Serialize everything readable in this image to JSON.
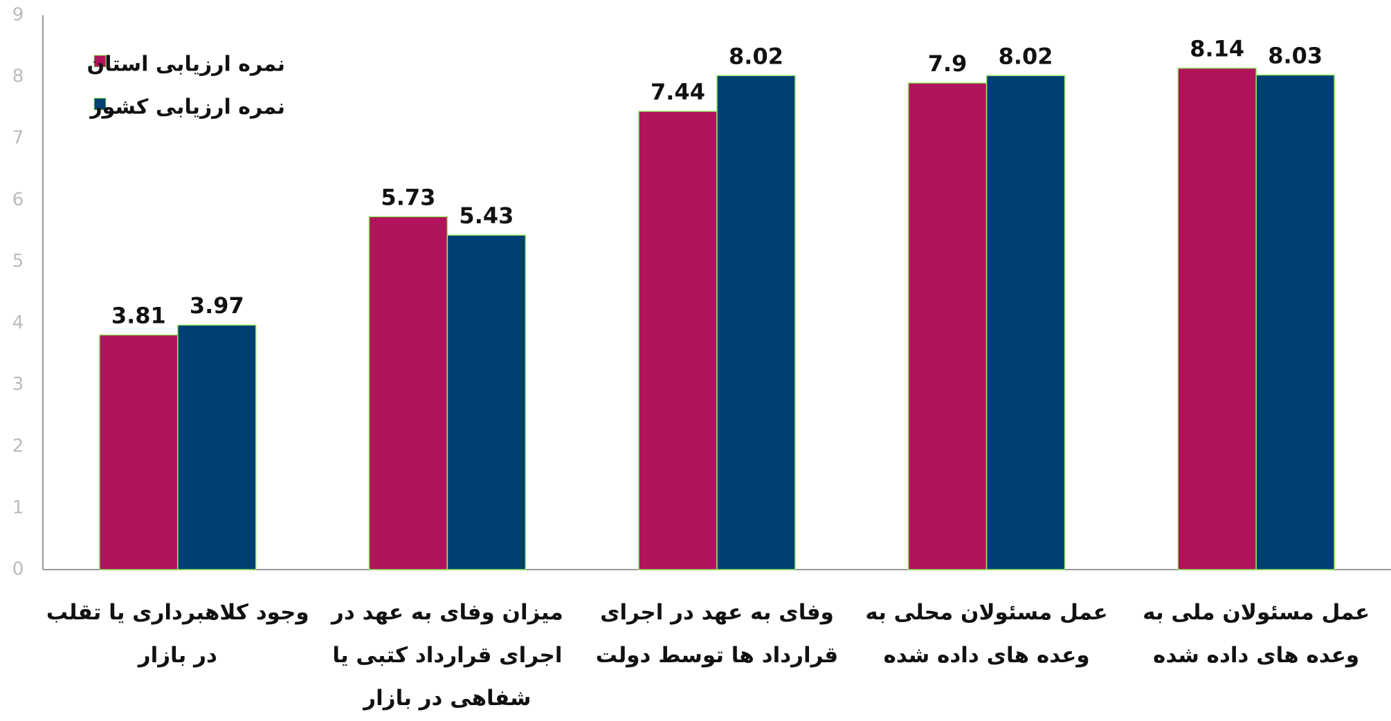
{
  "chart_data": {
    "type": "bar",
    "categories": [
      "وجود کلاهبرداری یا تقلب در بازار",
      "میزان وفای به عهد در اجرای قرارداد کتبی یا شفاهی در بازار",
      "وفای به عهد در اجرای قرارداد ها توسط دولت",
      "عمل مسئولان محلی به وعده های داده شده",
      "عمل مسئولان ملی به وعده های داده شده"
    ],
    "series": [
      {
        "name": "نمره ارزیابی استان",
        "color": "#b0135a",
        "values": [
          3.81,
          5.73,
          7.44,
          7.9,
          8.14
        ]
      },
      {
        "name": "نمره ارزیابی کشور",
        "color": "#003f72",
        "values": [
          3.97,
          5.43,
          8.02,
          8.02,
          8.03
        ]
      }
    ],
    "ylim": [
      0,
      9
    ],
    "yticks": [
      0,
      1,
      2,
      3,
      4,
      5,
      6,
      7,
      8,
      9
    ],
    "grid": false,
    "legend": "top-left"
  }
}
